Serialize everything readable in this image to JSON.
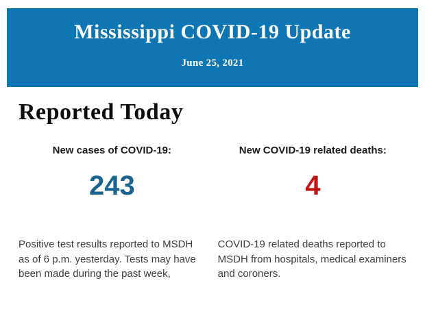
{
  "header": {
    "title": "Mississippi COVID-19 Update",
    "date": "June 25, 2021",
    "background_color": "#0e76b2",
    "text_color": "#ffffff"
  },
  "main": {
    "heading": "Reported Today",
    "stats": [
      {
        "label": "New cases of COVID-19:",
        "value": "243",
        "value_color": "#19648f",
        "description": "Positive test results reported to MSDH as of 6 p.m. yesterday. Tests may have been made during the past week,"
      },
      {
        "label": "New COVID-19 related deaths:",
        "value": "4",
        "value_color": "#c41111",
        "description": "COVID-19 related deaths reported to MSDH from hospitals, medical examiners and coroners."
      }
    ]
  }
}
